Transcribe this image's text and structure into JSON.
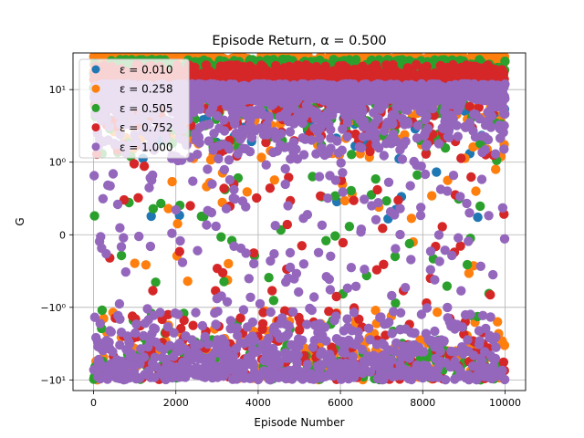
{
  "chart_data": {
    "type": "scatter",
    "title": "Episode Return, α = 0.500",
    "xlabel": "Episode Number",
    "ylabel": "G",
    "yscale": "symlog",
    "linthresh": 1,
    "xlim": [
      -500,
      10500
    ],
    "ylim": [
      -14,
      32
    ],
    "x_ticks": [
      0,
      2000,
      4000,
      6000,
      8000,
      10000
    ],
    "x_tick_labels": [
      "0",
      "2000",
      "4000",
      "6000",
      "8000",
      "10000"
    ],
    "y_ticks": [
      -10,
      -1,
      0,
      1,
      10
    ],
    "y_tick_labels": [
      "−10¹",
      "−10⁰",
      "0",
      "10⁰",
      "10¹"
    ],
    "grid": true,
    "legend_position": "top-left",
    "series": [
      {
        "name": "ε = 0.010",
        "color": "#1f77b4",
        "x_range": [
          0,
          10000
        ],
        "y_range": [
          0,
          20
        ],
        "typical_max": 19,
        "episodes": 10000
      },
      {
        "name": "ε = 0.258",
        "color": "#ff7f0e",
        "x_range": [
          0,
          10000
        ],
        "y_range": [
          -10,
          30
        ],
        "typical_max": 27,
        "episodes": 10000
      },
      {
        "name": "ε = 0.505",
        "color": "#2ca02c",
        "x_range": [
          0,
          10000
        ],
        "y_range": [
          -10,
          26
        ],
        "typical_max": 21,
        "episodes": 10000
      },
      {
        "name": "ε = 0.752",
        "color": "#d62728",
        "x_range": [
          0,
          10000
        ],
        "y_range": [
          -10,
          22
        ],
        "typical_max": 17,
        "episodes": 10000
      },
      {
        "name": "ε = 1.000",
        "color": "#9467bd",
        "x_range": [
          0,
          10000
        ],
        "y_range": [
          -10,
          12
        ],
        "typical_max": 10,
        "episodes": 10000
      }
    ]
  }
}
